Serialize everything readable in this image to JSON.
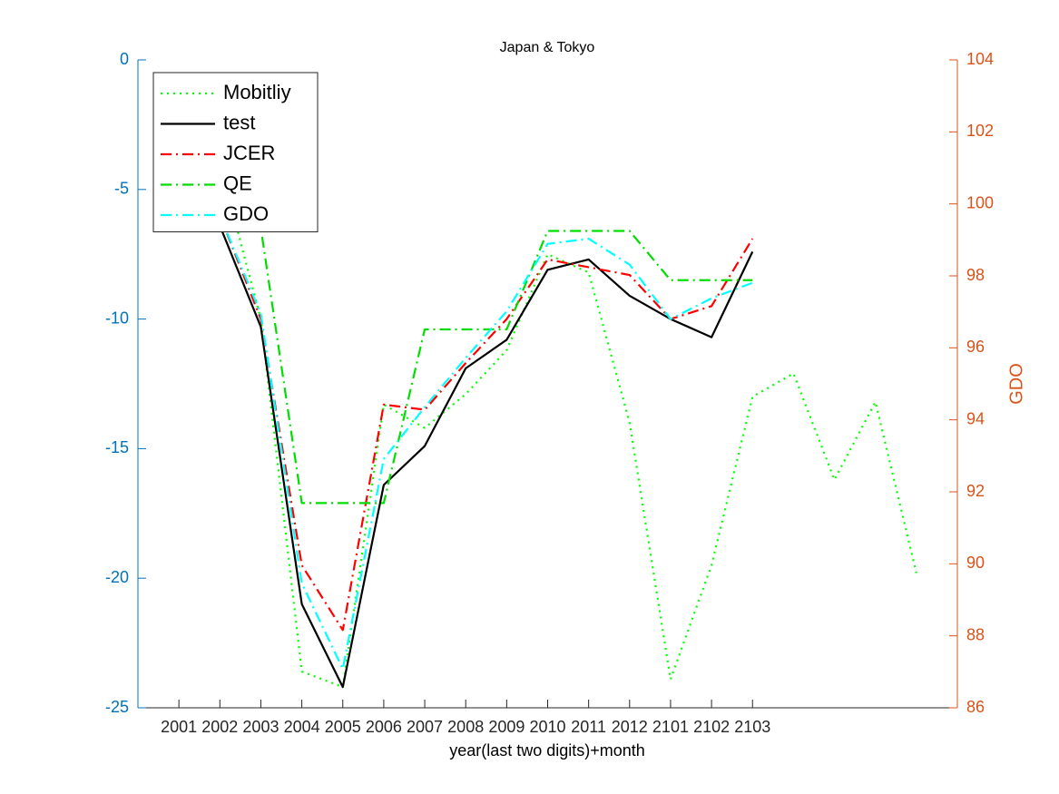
{
  "chart_data": {
    "type": "line",
    "title": "Japan & Tokyo",
    "xlabel": "year(last two digits)+month",
    "y2label": "GDO",
    "categories": [
      "2001",
      "2002",
      "2003",
      "2004",
      "2005",
      "2006",
      "2007",
      "2008",
      "2009",
      "2010",
      "2011",
      "2012",
      "2101",
      "2102",
      "2103",
      null,
      null,
      null,
      null
    ],
    "ylim": [
      -25,
      0
    ],
    "yticks": [
      -25,
      -20,
      -15,
      -10,
      -5,
      0
    ],
    "y2lim": [
      86,
      104
    ],
    "y2ticks": [
      86,
      88,
      90,
      92,
      94,
      96,
      98,
      100,
      102,
      104
    ],
    "ycolor": "#0072bd",
    "y2color": "#d95319",
    "legend": "northwest",
    "series": [
      {
        "name": "Mobitliy",
        "color": "#00ff00",
        "linestyle": "dotted",
        "values": [
          -1,
          -4,
          -10,
          -23.6,
          -24.2,
          -13.3,
          -14.2,
          -12.9,
          -11.2,
          -7.5,
          -8.2,
          -14,
          -23.9,
          -19.5,
          -13,
          -12.1,
          -16.2,
          -13.2,
          -19.8
        ]
      },
      {
        "name": "test",
        "color": "#000000",
        "linestyle": "solid",
        "values": [
          -2,
          -6.4,
          -10.3,
          -21,
          -24.2,
          -16.4,
          -14.9,
          -11.9,
          -10.8,
          -8.1,
          -7.7,
          -9.1,
          -10,
          -10.7,
          -7.4,
          null,
          null,
          null,
          null
        ]
      },
      {
        "name": "JCER",
        "color": "#ff0000",
        "linestyle": "dashdot",
        "values": [
          -2,
          -6,
          -10,
          -19.5,
          -22,
          -13.3,
          -13.5,
          -11.7,
          -10,
          -7.7,
          -8,
          -8.3,
          -10,
          -9.5,
          -6.9,
          null,
          null,
          null,
          null
        ]
      },
      {
        "name": "QE",
        "color": "#00dd00",
        "linestyle": "dashdot",
        "values": [
          -1,
          -3,
          -6.5,
          -17.1,
          -17.1,
          -17.1,
          -10.4,
          -10.4,
          -10.4,
          -6.6,
          -6.6,
          -6.6,
          -8.5,
          -8.5,
          -8.5,
          null,
          null,
          null,
          null
        ]
      },
      {
        "name": "GDO",
        "color": "#00ffff",
        "linestyle": "dashdot",
        "values": [
          -2,
          -6,
          -9.8,
          -20.2,
          -23.5,
          -15.4,
          -13.4,
          -11.5,
          -9.7,
          -7.1,
          -6.9,
          -7.9,
          -10,
          -9.2,
          -8.6,
          null,
          null,
          null,
          null
        ]
      }
    ]
  }
}
